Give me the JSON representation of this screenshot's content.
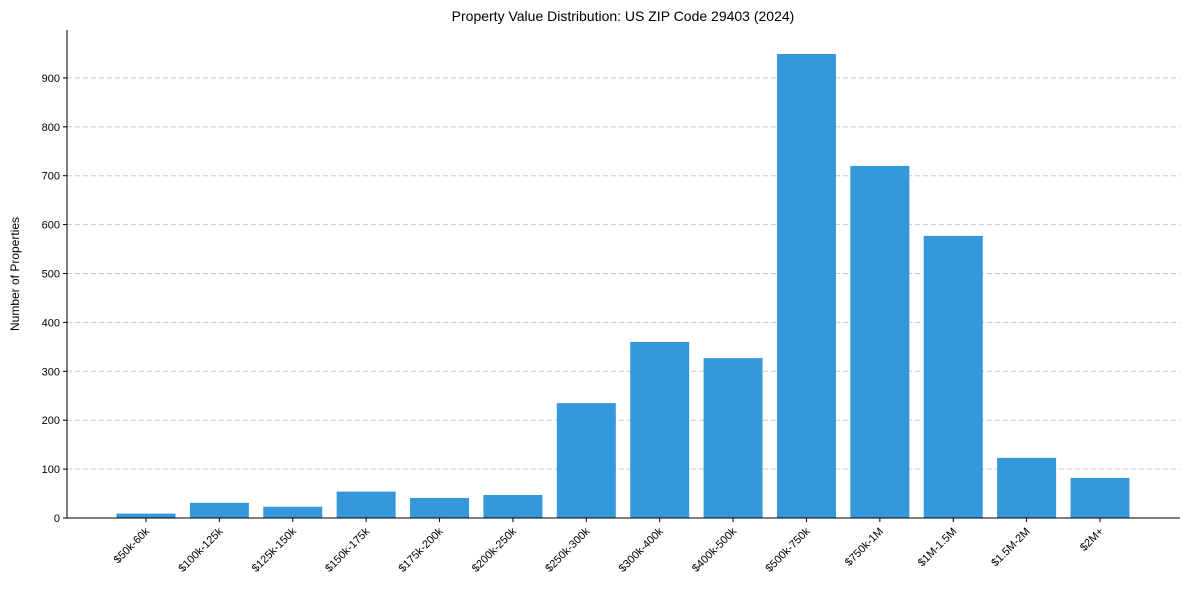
{
  "chart_data": {
    "type": "bar",
    "title": "Property Value Distribution: US ZIP Code 29403 (2024)",
    "xlabel": "",
    "ylabel": "Number of Properties",
    "categories": [
      "$50k-60k",
      "$100k-125k",
      "$125k-150k",
      "$150k-175k",
      "$175k-200k",
      "$200k-250k",
      "$250k-300k",
      "$300k-400k",
      "$400k-500k",
      "$500k-750k",
      "$750k-1M",
      "$1M-1.5M",
      "$1.5M-2M",
      "$2M+"
    ],
    "values": [
      9,
      31,
      23,
      54,
      41,
      47,
      235,
      360,
      327,
      949,
      720,
      577,
      123,
      82
    ],
    "ylim": [
      0,
      998
    ],
    "yticks": [
      0,
      100,
      200,
      300,
      400,
      500,
      600,
      700,
      800,
      900
    ],
    "grid": "y-dashed",
    "bar_color": "#3498db"
  }
}
